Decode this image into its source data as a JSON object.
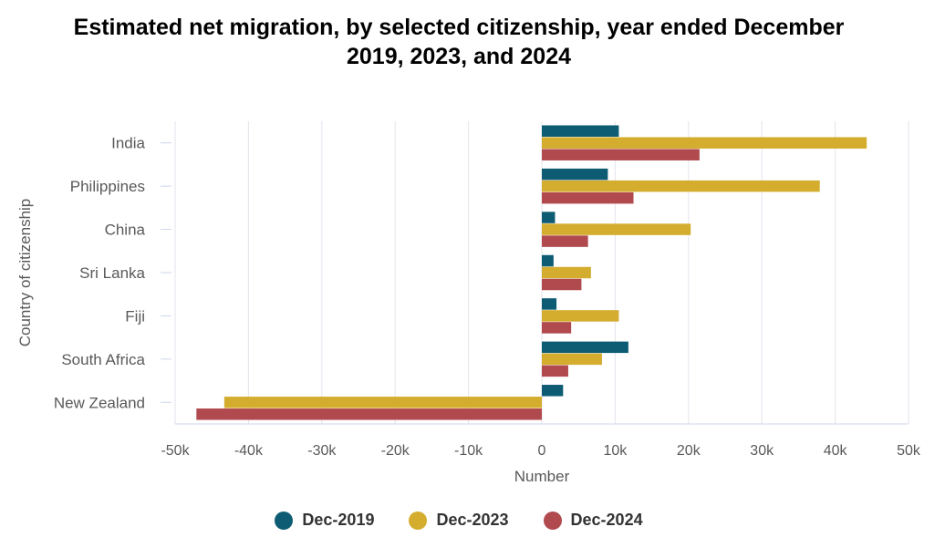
{
  "chart_data": {
    "type": "bar",
    "orientation": "horizontal",
    "title_lines": [
      "Estimated net migration, by selected citizenship, year ended December",
      "2019, 2023, and 2024"
    ],
    "xlabel": "Number",
    "ylabel": "Country of citizenship",
    "xlim": [
      -50000,
      50000
    ],
    "x_ticks": [
      -50000,
      -40000,
      -30000,
      -20000,
      -10000,
      0,
      10000,
      20000,
      30000,
      40000,
      50000
    ],
    "x_tick_labels": [
      "-50k",
      "-40k",
      "-30k",
      "-20k",
      "-10k",
      "0",
      "10k",
      "20k",
      "30k",
      "40k",
      "50k"
    ],
    "categories": [
      "India",
      "Philippines",
      "China",
      "Sri Lanka",
      "Fiji",
      "South Africa",
      "New Zealand"
    ],
    "series": [
      {
        "name": "Dec-2019",
        "color": "#0e5c74",
        "values": [
          10500,
          9000,
          1800,
          1600,
          2000,
          11800,
          2900
        ]
      },
      {
        "name": "Dec-2023",
        "color": "#d4ad2e",
        "values": [
          44300,
          37900,
          20300,
          6700,
          10500,
          8200,
          -43300
        ]
      },
      {
        "name": "Dec-2024",
        "color": "#b14a4e",
        "values": [
          21500,
          12500,
          6300,
          5400,
          4000,
          3600,
          -47100
        ]
      }
    ],
    "grid": true,
    "legend_position": "bottom-center"
  }
}
